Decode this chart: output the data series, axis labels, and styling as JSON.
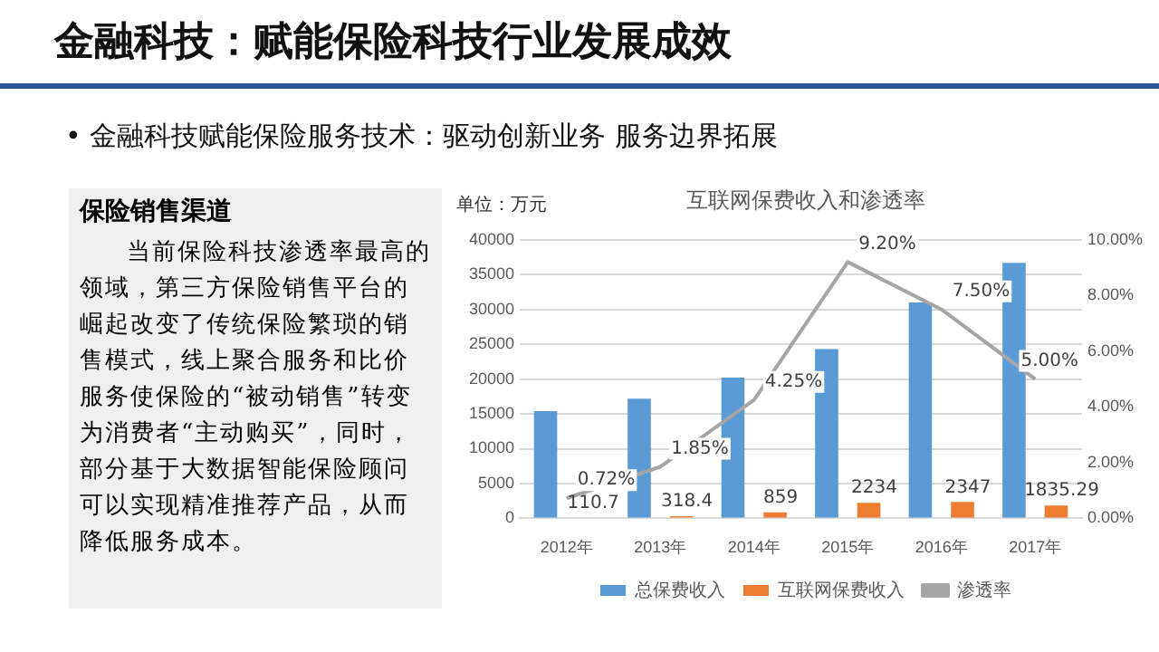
{
  "chart_data": {
    "type": "bar",
    "title": "互联网保费收入和渗透率",
    "categories": [
      "2012年",
      "2013年",
      "2014年",
      "2015年",
      "2016年",
      "2017年"
    ],
    "series": [
      {
        "name": "总保费收入",
        "color": "#5b9bd5",
        "values": [
          15400,
          17200,
          20200,
          24300,
          31000,
          36700
        ]
      },
      {
        "name": "互联网保费收入",
        "color": "#ed7d31",
        "values": [
          110.7,
          318.4,
          859,
          2234,
          2347,
          1835.29
        ],
        "value_labels": [
          "110.7",
          "318.4",
          "859",
          "2234",
          "2347",
          "1835.29"
        ]
      },
      {
        "name": "渗透率",
        "type": "line",
        "axis": "y2",
        "color": "#a5a5a5",
        "values": [
          0.72,
          1.85,
          4.25,
          9.2,
          7.5,
          5.0
        ],
        "value_labels": [
          "0.72%",
          "1.85%",
          "4.25%",
          "9.20%",
          "7.50%",
          "5.00%"
        ]
      }
    ],
    "ylim": [
      0,
      40000
    ],
    "yticks": [
      0,
      5000,
      10000,
      15000,
      20000,
      25000,
      30000,
      35000,
      40000
    ],
    "y2lim": [
      0,
      10
    ],
    "y2ticks": [
      {
        "value": 0,
        "label": "0.00%"
      },
      {
        "value": 2,
        "label": "2.00%"
      },
      {
        "value": 4,
        "label": "4.00%"
      },
      {
        "value": 6,
        "label": "6.00%"
      },
      {
        "value": 8,
        "label": "8.00%"
      },
      {
        "value": 10,
        "label": "10.00%"
      }
    ],
    "grid": "y",
    "legend": "bottom",
    "marker": "none",
    "annotations": [
      "金融科技：赋能保险科技行业发展成效",
      "• 金融科技赋能保险服务技术：驱动创新业务 服务边界拓展",
      "保险销售渠道",
      "当前保险科技渗透率最高的领域，第三方保险销售平台的崛起改变了传统保险繁琐的销售模式，线上聚合服务和比价服务使保险的“被动销售”转变为消费者“主动购买”，同时，部分基于大数据智能保险顾问可以实现精准推荐产品，从而降低服务成本。",
      "单位：万元"
    ]
  }
}
